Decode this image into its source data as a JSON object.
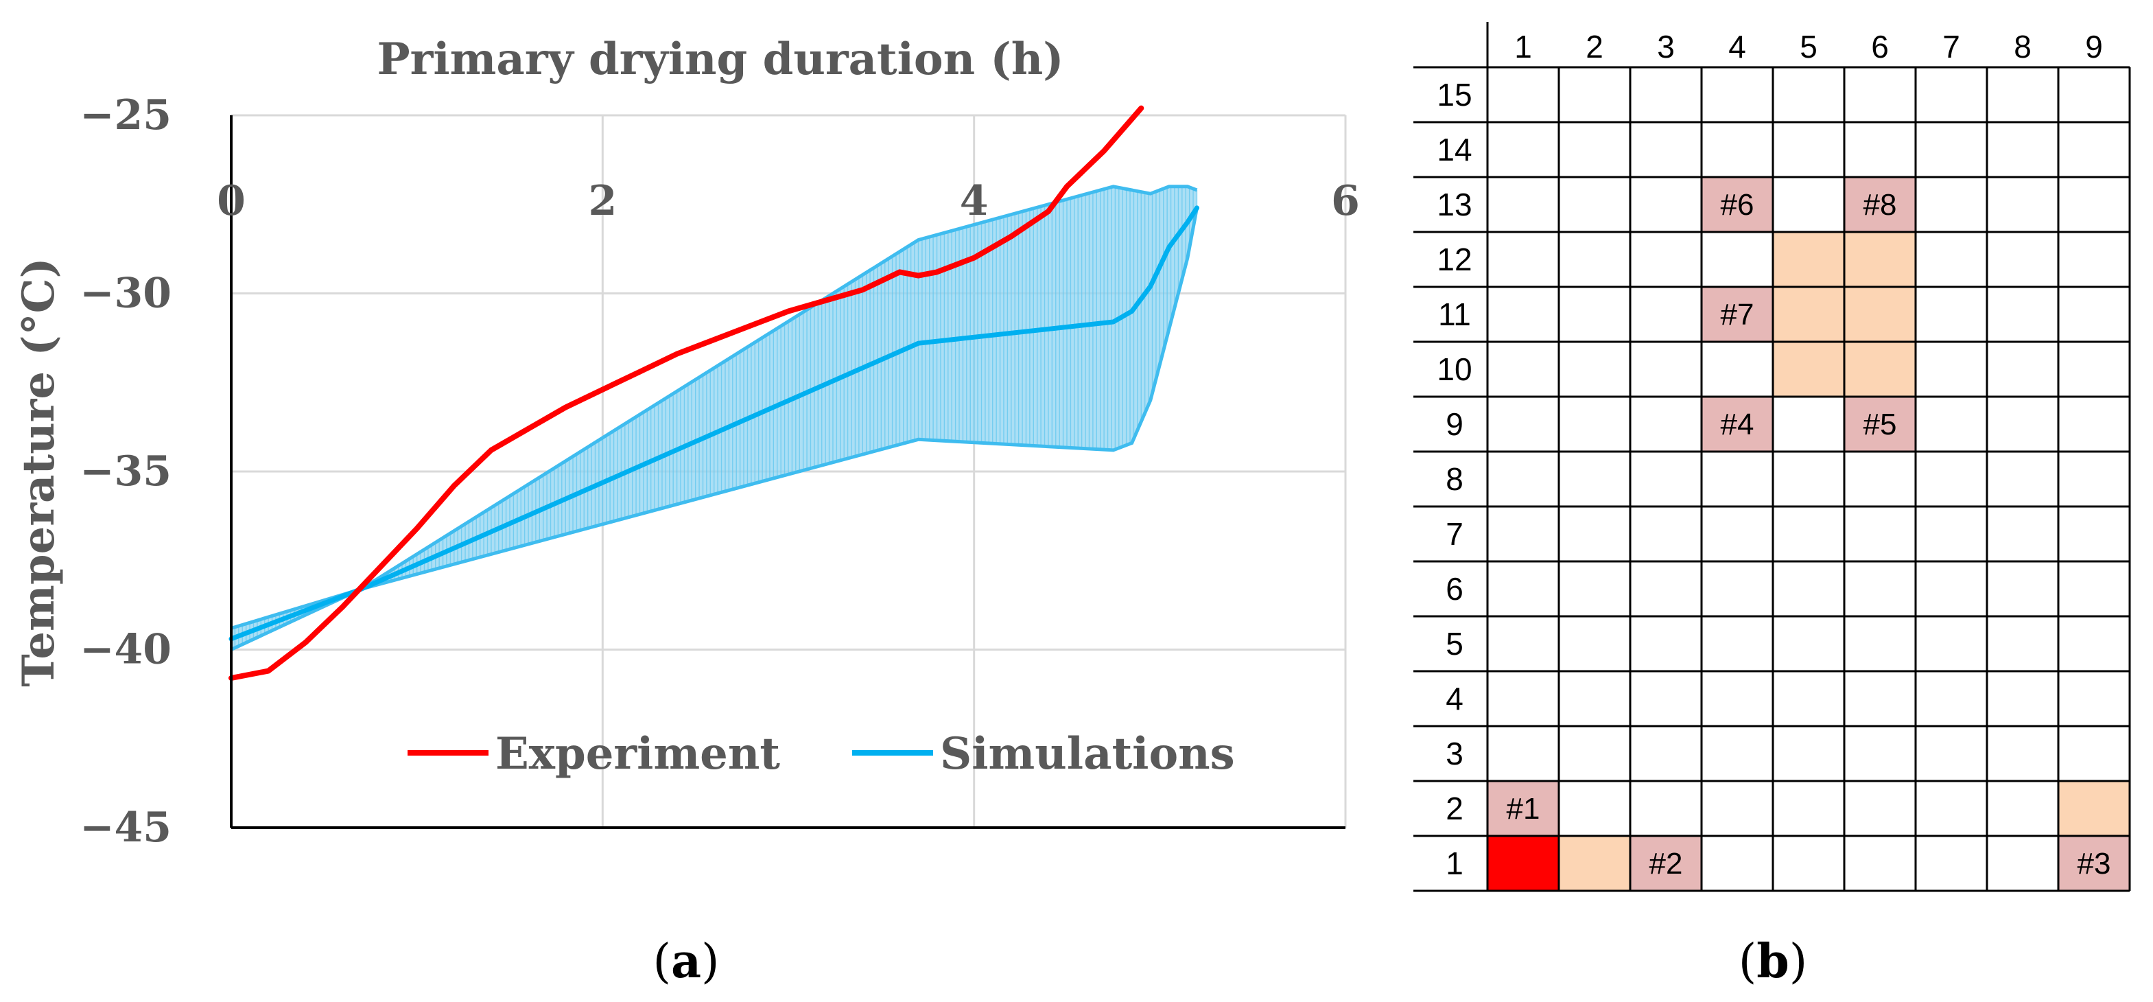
{
  "chart_data": [
    {
      "panel": "(a)",
      "type": "line",
      "title": "Primary drying duration (h)",
      "xlabel": "Primary drying duration (h)",
      "ylabel": "Temperature (°C)",
      "xlim": [
        0,
        6
      ],
      "ylim": [
        -45,
        -25
      ],
      "x_ticks": [
        0,
        2,
        4,
        6
      ],
      "y_ticks": [
        -25,
        -30,
        -35,
        -40,
        -45
      ],
      "x_tick_labels": [
        "0",
        "2",
        "4",
        "6"
      ],
      "y_tick_labels": [
        "−25",
        "−30",
        "−35",
        "−40",
        "−45"
      ],
      "x_axis_position": "top",
      "grid": true,
      "legend_position": "bottom-center",
      "series": [
        {
          "name": "Experiment",
          "color": "#ff0000",
          "x": [
            0,
            0.2,
            0.4,
            0.6,
            0.8,
            1.0,
            1.2,
            1.4,
            1.6,
            1.8,
            2.0,
            2.2,
            2.4,
            2.6,
            2.8,
            3.0,
            3.2,
            3.4,
            3.6,
            3.7,
            3.8,
            3.9,
            4.0,
            4.2,
            4.4,
            4.5,
            4.6,
            4.7,
            4.8,
            4.9
          ],
          "y": [
            -40.8,
            -40.6,
            -39.8,
            -38.8,
            -37.7,
            -36.6,
            -35.4,
            -34.4,
            -33.8,
            -33.2,
            -32.7,
            -32.2,
            -31.7,
            -31.3,
            -30.9,
            -30.5,
            -30.2,
            -29.9,
            -29.4,
            -29.5,
            -29.4,
            -29.2,
            -29.0,
            -28.4,
            -27.7,
            -27.0,
            -26.5,
            -26.0,
            -25.4,
            -24.8
          ]
        },
        {
          "name": "Simulations",
          "color": "#00b0f0",
          "x": [
            0,
            0.7,
            3.7,
            4.75,
            4.85,
            4.95,
            5.05,
            5.15,
            5.2
          ],
          "y": [
            -39.7,
            -38.3,
            -31.4,
            -30.8,
            -30.5,
            -29.8,
            -28.7,
            -28.0,
            -27.6
          ],
          "upper": [
            -39.4,
            -38.3,
            -28.5,
            -27.0,
            -27.1,
            -27.2,
            -27.0,
            -27.0,
            -27.1
          ],
          "lower": [
            -40.0,
            -38.3,
            -34.1,
            -34.4,
            -34.2,
            -33.0,
            -31.0,
            -29.0,
            -27.6
          ]
        }
      ]
    },
    {
      "panel": "(b)",
      "type": "table",
      "columns": [
        "1",
        "2",
        "3",
        "4",
        "5",
        "6",
        "7",
        "8",
        "9"
      ],
      "rows": [
        "15",
        "14",
        "13",
        "12",
        "11",
        "10",
        "9",
        "8",
        "7",
        "6",
        "5",
        "4",
        "3",
        "2",
        "1"
      ],
      "colors": {
        "label_cell": "#e6b8b7",
        "orange_cell": "#fcd5b4",
        "red_cell": "#ff0000"
      },
      "cells": [
        {
          "row": 13,
          "col": 4,
          "label": "#6",
          "fill": "label_cell"
        },
        {
          "row": 13,
          "col": 6,
          "label": "#8",
          "fill": "label_cell"
        },
        {
          "row": 12,
          "col": 5,
          "label": "",
          "fill": "orange_cell"
        },
        {
          "row": 12,
          "col": 6,
          "label": "",
          "fill": "orange_cell"
        },
        {
          "row": 11,
          "col": 4,
          "label": "#7",
          "fill": "label_cell"
        },
        {
          "row": 11,
          "col": 5,
          "label": "",
          "fill": "orange_cell"
        },
        {
          "row": 11,
          "col": 6,
          "label": "",
          "fill": "orange_cell"
        },
        {
          "row": 10,
          "col": 5,
          "label": "",
          "fill": "orange_cell"
        },
        {
          "row": 10,
          "col": 6,
          "label": "",
          "fill": "orange_cell"
        },
        {
          "row": 9,
          "col": 4,
          "label": "#4",
          "fill": "label_cell"
        },
        {
          "row": 9,
          "col": 6,
          "label": "#5",
          "fill": "label_cell"
        },
        {
          "row": 2,
          "col": 1,
          "label": "#1",
          "fill": "label_cell"
        },
        {
          "row": 2,
          "col": 9,
          "label": "",
          "fill": "orange_cell"
        },
        {
          "row": 1,
          "col": 1,
          "label": "",
          "fill": "red_cell"
        },
        {
          "row": 1,
          "col": 2,
          "label": "",
          "fill": "orange_cell"
        },
        {
          "row": 1,
          "col": 3,
          "label": "#2",
          "fill": "label_cell"
        },
        {
          "row": 1,
          "col": 9,
          "label": "#3",
          "fill": "label_cell"
        }
      ]
    }
  ],
  "panel_labels": {
    "a_open": "(",
    "a_letter": "a",
    "a_close": ")",
    "b_open": "(",
    "b_letter": "b",
    "b_close": ")"
  }
}
